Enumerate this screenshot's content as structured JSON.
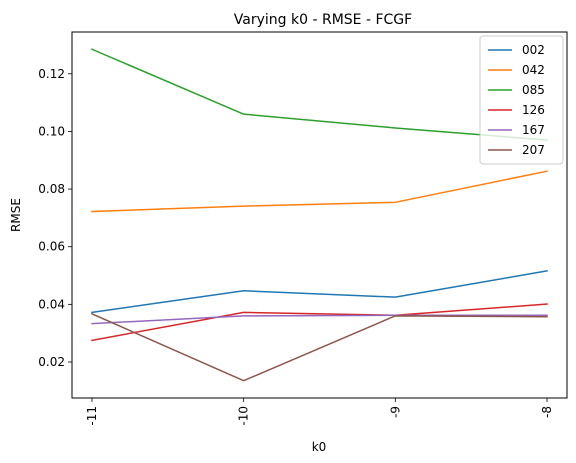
{
  "chart_data": {
    "type": "line",
    "title": "Varying k0 - RMSE - FCGF",
    "xlabel": "k0",
    "ylabel": "RMSE",
    "categories": [
      "-11",
      "-10",
      "-9",
      "-8"
    ],
    "ylim": [
      0.0075,
      0.1345
    ],
    "yticks": [
      0.02,
      0.04,
      0.06,
      0.08,
      0.1,
      0.12
    ],
    "ytick_labels": [
      "0.02",
      "0.04",
      "0.06",
      "0.08",
      "0.10",
      "0.12"
    ],
    "grid": false,
    "legend_position": "top-right",
    "series": [
      {
        "name": "002",
        "color": "#1f77b4",
        "values": [
          0.0372,
          0.0447,
          0.0425,
          0.0516
        ]
      },
      {
        "name": "042",
        "color": "#ff7f0e",
        "values": [
          0.0722,
          0.0741,
          0.0754,
          0.0862
        ]
      },
      {
        "name": "085",
        "color": "#2ca02c",
        "values": [
          0.1285,
          0.106,
          0.1012,
          0.097
        ]
      },
      {
        "name": "126",
        "color": "#d62728",
        "values": [
          0.0275,
          0.0372,
          0.0362,
          0.0401
        ]
      },
      {
        "name": "167",
        "color": "#9467bd",
        "values": [
          0.0333,
          0.036,
          0.0362,
          0.0362
        ]
      },
      {
        "name": "207",
        "color": "#8c564b",
        "values": [
          0.0367,
          0.0135,
          0.036,
          0.0357
        ]
      }
    ]
  }
}
